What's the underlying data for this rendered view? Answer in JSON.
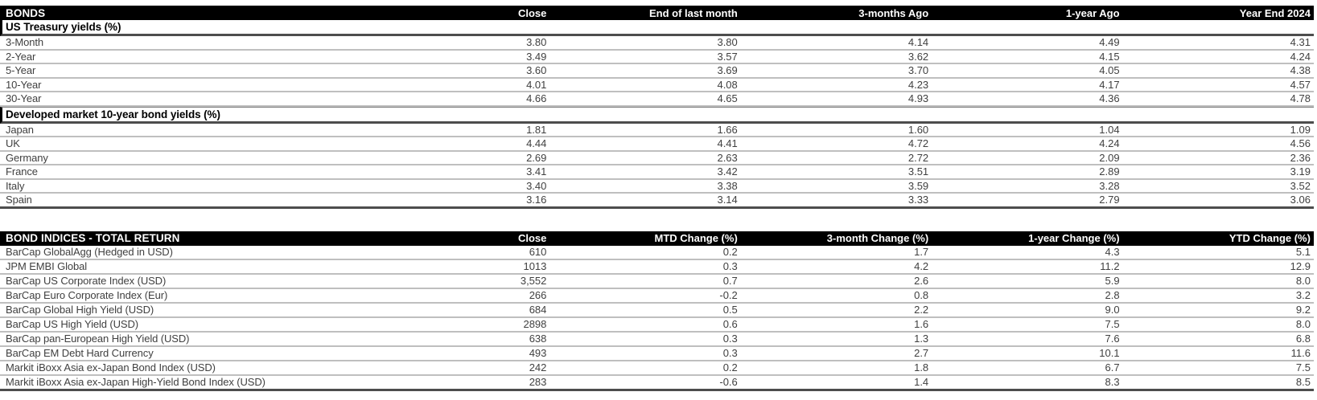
{
  "colors": {
    "header_bg": "#000000",
    "header_text": "#ffffff",
    "body_text": "#404040",
    "section_text": "#000000",
    "row_divider": "#bfbfbf",
    "thick_rule": "#4d4d4d"
  },
  "table1": {
    "title": "BONDS",
    "columns": [
      "Close",
      "End of last month",
      "3-months Ago",
      "1-year Ago",
      "Year End 2024"
    ],
    "sections": [
      {
        "title": "US Treasury yields (%)",
        "rows": [
          {
            "label": "3-Month",
            "values": [
              "3.80",
              "3.80",
              "4.14",
              "4.49",
              "4.31"
            ]
          },
          {
            "label": "2-Year",
            "values": [
              "3.49",
              "3.57",
              "3.62",
              "4.15",
              "4.24"
            ]
          },
          {
            "label": "5-Year",
            "values": [
              "3.60",
              "3.69",
              "3.70",
              "4.05",
              "4.38"
            ]
          },
          {
            "label": "10-Year",
            "values": [
              "4.01",
              "4.08",
              "4.23",
              "4.17",
              "4.57"
            ]
          },
          {
            "label": "30-Year",
            "values": [
              "4.66",
              "4.65",
              "4.93",
              "4.36",
              "4.78"
            ]
          }
        ]
      },
      {
        "title": "Developed market 10-year bond yields (%)",
        "rows": [
          {
            "label": "Japan",
            "values": [
              "1.81",
              "1.66",
              "1.60",
              "1.04",
              "1.09"
            ]
          },
          {
            "label": "UK",
            "values": [
              "4.44",
              "4.41",
              "4.72",
              "4.24",
              "4.56"
            ]
          },
          {
            "label": "Germany",
            "values": [
              "2.69",
              "2.63",
              "2.72",
              "2.09",
              "2.36"
            ]
          },
          {
            "label": "France",
            "values": [
              "3.41",
              "3.42",
              "3.51",
              "2.89",
              "3.19"
            ]
          },
          {
            "label": "Italy",
            "values": [
              "3.40",
              "3.38",
              "3.59",
              "3.28",
              "3.52"
            ]
          },
          {
            "label": "Spain",
            "values": [
              "3.16",
              "3.14",
              "3.33",
              "2.79",
              "3.06"
            ]
          }
        ]
      }
    ]
  },
  "table2": {
    "title": "BOND INDICES - TOTAL RETURN",
    "columns": [
      "Close",
      "MTD Change (%)",
      "3-month Change (%)",
      "1-year Change (%)",
      "YTD Change (%)"
    ],
    "rows": [
      {
        "label": "BarCap GlobalAgg (Hedged in USD)",
        "values": [
          "610",
          "0.2",
          "1.7",
          "4.3",
          "5.1"
        ]
      },
      {
        "label": "JPM EMBI Global",
        "values": [
          "1013",
          "0.3",
          "4.2",
          "11.2",
          "12.9"
        ]
      },
      {
        "label": "BarCap US Corporate Index (USD)",
        "values": [
          "3,552",
          "0.7",
          "2.6",
          "5.9",
          "8.0"
        ]
      },
      {
        "label": "BarCap Euro Corporate Index (Eur)",
        "values": [
          "266",
          "-0.2",
          "0.8",
          "2.8",
          "3.2"
        ]
      },
      {
        "label": "BarCap Global High Yield (USD)",
        "values": [
          "684",
          "0.5",
          "2.2",
          "9.0",
          "9.2"
        ]
      },
      {
        "label": "BarCap US High Yield (USD)",
        "values": [
          "2898",
          "0.6",
          "1.6",
          "7.5",
          "8.0"
        ]
      },
      {
        "label": "BarCap pan-European High Yield (USD)",
        "values": [
          "638",
          "0.3",
          "1.3",
          "7.6",
          "6.8"
        ]
      },
      {
        "label": "BarCap EM Debt Hard Currency",
        "values": [
          "493",
          "0.3",
          "2.7",
          "10.1",
          "11.6"
        ]
      },
      {
        "label": "Markit iBoxx Asia ex-Japan  Bond Index (USD)",
        "values": [
          "242",
          "0.2",
          "1.8",
          "6.7",
          "7.5"
        ]
      },
      {
        "label": "Markit iBoxx Asia ex-Japan  High-Yield Bond Index (USD)",
        "values": [
          "283",
          "-0.6",
          "1.4",
          "8.3",
          "8.5"
        ]
      }
    ]
  }
}
